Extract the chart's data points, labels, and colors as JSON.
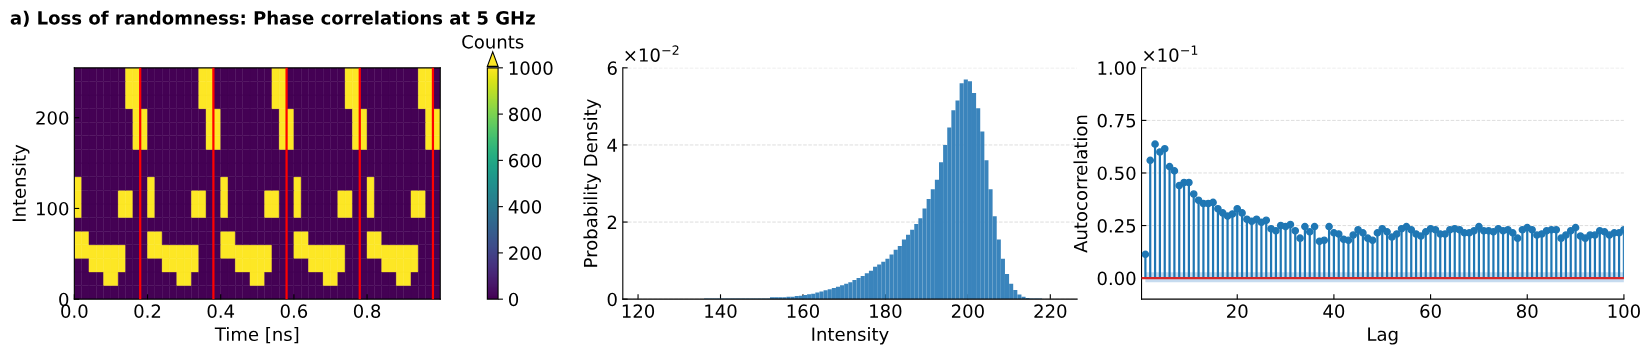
{
  "chart_data": [
    {
      "type": "heatmap",
      "title": "a) Loss of randomness: Phase correlations at 5 GHz",
      "xlabel": "Time [ns]",
      "ylabel": "Intensity",
      "clabel": "Counts",
      "x": [
        0.01,
        0.03,
        0.05,
        0.07,
        0.09,
        0.11,
        0.13,
        0.15,
        0.17,
        0.19,
        0.21,
        0.23,
        0.25,
        0.27,
        0.29,
        0.31,
        0.33,
        0.35,
        0.37,
        0.39,
        0.41,
        0.43,
        0.45,
        0.47,
        0.49,
        0.51,
        0.53,
        0.55,
        0.57,
        0.59,
        0.61,
        0.63,
        0.65,
        0.67,
        0.69,
        0.71,
        0.73,
        0.75,
        0.77,
        0.79,
        0.81,
        0.83,
        0.85,
        0.87,
        0.89,
        0.91,
        0.93,
        0.95,
        0.97,
        0.99
      ],
      "y": [
        7.5,
        22.5,
        37.5,
        52.5,
        67.5,
        82.5,
        97.5,
        112.5,
        127.5,
        142.5,
        157.5,
        172.5,
        187.5,
        202.5,
        217.5,
        232.5,
        247.5
      ],
      "cells": [
        [
          0,
          0,
          0,
          0,
          0,
          0,
          0,
          0,
          0,
          0,
          0,
          0,
          0,
          0,
          0,
          0,
          0,
          0,
          0,
          0,
          0,
          0,
          0,
          0,
          0,
          0,
          0,
          0,
          0,
          0,
          0,
          0,
          0,
          0,
          0,
          0,
          0,
          0,
          0,
          0,
          0,
          0,
          0,
          0,
          0,
          0,
          0,
          0,
          0,
          0
        ],
        [
          0,
          0,
          0,
          0,
          1000,
          1000,
          0,
          0,
          0,
          0,
          0,
          0,
          0,
          0,
          1000,
          1000,
          0,
          0,
          0,
          0,
          0,
          0,
          0,
          0,
          1000,
          1000,
          0,
          0,
          0,
          0,
          0,
          0,
          0,
          0,
          1000,
          1000,
          0,
          0,
          0,
          0,
          0,
          0,
          0,
          0,
          1000,
          1000,
          0,
          0,
          0,
          0
        ],
        [
          0,
          0,
          1000,
          1000,
          1000,
          1000,
          1000,
          0,
          0,
          0,
          0,
          0,
          1000,
          1000,
          1000,
          1000,
          1000,
          0,
          0,
          0,
          0,
          0,
          1000,
          1000,
          1000,
          1000,
          1000,
          0,
          0,
          0,
          0,
          0,
          1000,
          1000,
          1000,
          1000,
          1000,
          0,
          0,
          0,
          0,
          0,
          1000,
          1000,
          1000,
          1000,
          1000,
          0,
          0,
          0
        ],
        [
          1000,
          1000,
          1000,
          1000,
          1000,
          1000,
          1000,
          0,
          0,
          0,
          1000,
          1000,
          1000,
          1000,
          1000,
          1000,
          1000,
          0,
          0,
          0,
          1000,
          1000,
          1000,
          1000,
          1000,
          1000,
          1000,
          0,
          0,
          0,
          1000,
          1000,
          1000,
          1000,
          1000,
          1000,
          1000,
          0,
          0,
          0,
          1000,
          1000,
          1000,
          1000,
          1000,
          1000,
          1000,
          0,
          0,
          0
        ],
        [
          1000,
          1000,
          0,
          0,
          0,
          0,
          0,
          0,
          0,
          0,
          1000,
          1000,
          0,
          0,
          0,
          0,
          0,
          0,
          0,
          0,
          1000,
          1000,
          0,
          0,
          0,
          0,
          0,
          0,
          0,
          0,
          1000,
          1000,
          0,
          0,
          0,
          0,
          0,
          0,
          0,
          0,
          1000,
          1000,
          0,
          0,
          0,
          0,
          0,
          0,
          0,
          0
        ],
        [
          0,
          0,
          0,
          0,
          0,
          0,
          0,
          0,
          0,
          0,
          0,
          0,
          0,
          0,
          0,
          0,
          0,
          0,
          0,
          0,
          0,
          0,
          0,
          0,
          0,
          0,
          0,
          0,
          0,
          0,
          0,
          0,
          0,
          0,
          0,
          0,
          0,
          0,
          0,
          0,
          0,
          0,
          0,
          0,
          0,
          0,
          0,
          0,
          0,
          0
        ],
        [
          1000,
          0,
          0,
          0,
          0,
          0,
          1000,
          1000,
          0,
          0,
          1000,
          0,
          0,
          0,
          0,
          0,
          1000,
          1000,
          0,
          0,
          1000,
          0,
          0,
          0,
          0,
          0,
          1000,
          1000,
          0,
          0,
          1000,
          0,
          0,
          0,
          0,
          0,
          1000,
          1000,
          0,
          0,
          1000,
          0,
          0,
          0,
          0,
          0,
          1000,
          1000,
          0,
          0
        ],
        [
          1000,
          0,
          0,
          0,
          0,
          0,
          1000,
          1000,
          0,
          0,
          1000,
          0,
          0,
          0,
          0,
          0,
          1000,
          1000,
          0,
          0,
          1000,
          0,
          0,
          0,
          0,
          0,
          1000,
          1000,
          0,
          0,
          1000,
          0,
          0,
          0,
          0,
          0,
          1000,
          1000,
          0,
          0,
          1000,
          0,
          0,
          0,
          0,
          0,
          1000,
          1000,
          0,
          0
        ],
        [
          1000,
          0,
          0,
          0,
          0,
          0,
          0,
          0,
          0,
          0,
          1000,
          0,
          0,
          0,
          0,
          0,
          0,
          0,
          0,
          0,
          1000,
          0,
          0,
          0,
          0,
          0,
          0,
          0,
          0,
          0,
          1000,
          0,
          0,
          0,
          0,
          0,
          0,
          0,
          0,
          0,
          1000,
          0,
          0,
          0,
          0,
          0,
          0,
          0,
          0,
          0
        ],
        [
          0,
          0,
          0,
          0,
          0,
          0,
          0,
          0,
          0,
          0,
          0,
          0,
          0,
          0,
          0,
          0,
          0,
          0,
          0,
          0,
          0,
          0,
          0,
          0,
          0,
          0,
          0,
          0,
          0,
          0,
          0,
          0,
          0,
          0,
          0,
          0,
          0,
          0,
          0,
          0,
          0,
          0,
          0,
          0,
          0,
          0,
          0,
          0,
          0,
          0
        ],
        [
          0,
          0,
          0,
          0,
          0,
          0,
          0,
          0,
          0,
          0,
          0,
          0,
          0,
          0,
          0,
          0,
          0,
          0,
          0,
          0,
          0,
          0,
          0,
          0,
          0,
          0,
          0,
          0,
          0,
          0,
          0,
          0,
          0,
          0,
          0,
          0,
          0,
          0,
          0,
          0,
          0,
          0,
          0,
          0,
          0,
          0,
          0,
          0,
          0,
          0
        ],
        [
          0,
          0,
          0,
          0,
          0,
          0,
          0,
          0,
          1000,
          1000,
          0,
          0,
          0,
          0,
          0,
          0,
          0,
          0,
          1000,
          1000,
          0,
          0,
          0,
          0,
          0,
          0,
          0,
          0,
          1000,
          1000,
          0,
          0,
          0,
          0,
          0,
          0,
          0,
          0,
          1000,
          1000,
          0,
          0,
          0,
          0,
          0,
          0,
          0,
          0,
          1000,
          1000
        ],
        [
          0,
          0,
          0,
          0,
          0,
          0,
          0,
          0,
          1000,
          1000,
          0,
          0,
          0,
          0,
          0,
          0,
          0,
          0,
          1000,
          1000,
          0,
          0,
          0,
          0,
          0,
          0,
          0,
          0,
          1000,
          1000,
          0,
          0,
          0,
          0,
          0,
          0,
          0,
          0,
          1000,
          1000,
          0,
          0,
          0,
          0,
          0,
          0,
          0,
          0,
          1000,
          1000
        ],
        [
          0,
          0,
          0,
          0,
          0,
          0,
          0,
          0,
          1000,
          1000,
          0,
          0,
          0,
          0,
          0,
          0,
          0,
          0,
          1000,
          1000,
          0,
          0,
          0,
          0,
          0,
          0,
          0,
          0,
          1000,
          1000,
          0,
          0,
          0,
          0,
          0,
          0,
          0,
          0,
          1000,
          1000,
          0,
          0,
          0,
          0,
          0,
          0,
          0,
          0,
          1000,
          1000
        ],
        [
          0,
          0,
          0,
          0,
          0,
          0,
          0,
          1000,
          1000,
          0,
          0,
          0,
          0,
          0,
          0,
          0,
          0,
          1000,
          1000,
          0,
          0,
          0,
          0,
          0,
          0,
          0,
          0,
          1000,
          1000,
          0,
          0,
          0,
          0,
          0,
          0,
          0,
          0,
          1000,
          1000,
          0,
          0,
          0,
          0,
          0,
          0,
          0,
          0,
          1000,
          1000,
          0
        ],
        [
          0,
          0,
          0,
          0,
          0,
          0,
          0,
          1000,
          1000,
          0,
          0,
          0,
          0,
          0,
          0,
          0,
          0,
          1000,
          1000,
          0,
          0,
          0,
          0,
          0,
          0,
          0,
          0,
          1000,
          1000,
          0,
          0,
          0,
          0,
          0,
          0,
          0,
          0,
          1000,
          1000,
          0,
          0,
          0,
          0,
          0,
          0,
          0,
          0,
          1000,
          1000,
          0
        ],
        [
          0,
          0,
          0,
          0,
          0,
          0,
          0,
          1000,
          1000,
          0,
          0,
          0,
          0,
          0,
          0,
          0,
          0,
          1000,
          1000,
          0,
          0,
          0,
          0,
          0,
          0,
          0,
          0,
          1000,
          1000,
          0,
          0,
          0,
          0,
          0,
          0,
          0,
          0,
          1000,
          1000,
          0,
          0,
          0,
          0,
          0,
          0,
          0,
          0,
          1000,
          1000,
          0
        ]
      ],
      "xlim": [
        0,
        1
      ],
      "ylim": [
        0,
        255
      ],
      "xticks": [
        {
          "value": 0,
          "label": "0.0"
        },
        {
          "value": 0.2,
          "label": "0.2"
        },
        {
          "value": 0.4,
          "label": "0.4"
        },
        {
          "value": 0.6,
          "label": "0.6"
        },
        {
          "value": 0.8,
          "label": "0.8"
        }
      ],
      "yticks": [
        0,
        100,
        200
      ],
      "clim": [
        0,
        1000
      ],
      "cticks": [
        0,
        200,
        400,
        600,
        800,
        1000
      ],
      "ref_lines": [
        {
          "axis": "x",
          "value": 0.18,
          "color": "#ff0000"
        },
        {
          "axis": "x",
          "value": 0.38,
          "color": "#ff0000"
        },
        {
          "axis": "x",
          "value": 0.58,
          "color": "#ff0000"
        },
        {
          "axis": "x",
          "value": 0.78,
          "color": "#ff0000"
        },
        {
          "axis": "x",
          "value": 0.98,
          "color": "#ff0000"
        }
      ]
    },
    {
      "type": "histogram",
      "xlabel": "Intensity",
      "ylabel": "Probability Density",
      "color": "#3a84bc",
      "bins": [
        136,
        137,
        138,
        139,
        140,
        141,
        142,
        143,
        144,
        145,
        146,
        147,
        148,
        149,
        150,
        151,
        152,
        153,
        154,
        155,
        156,
        157,
        158,
        159,
        160,
        161,
        162,
        163,
        164,
        165,
        166,
        167,
        168,
        169,
        170,
        171,
        172,
        173,
        174,
        175,
        176,
        177,
        178,
        179,
        180,
        181,
        182,
        183,
        184,
        185,
        186,
        187,
        188,
        189,
        190,
        191,
        192,
        193,
        194,
        195,
        196,
        197,
        198,
        199,
        200,
        201,
        202,
        203,
        204,
        205,
        206,
        207,
        208,
        209,
        210,
        211,
        212,
        213,
        214,
        215,
        216,
        217,
        218
      ],
      "values": [
        0.02,
        0.02,
        0.02,
        0.02,
        0.02,
        0.02,
        0.02,
        0.02,
        0.02,
        0.02,
        0.02,
        0.02,
        0.02,
        0.02,
        0.02,
        0.02,
        0.05,
        0.05,
        0.05,
        0.05,
        0.06,
        0.06,
        0.08,
        0.09,
        0.11,
        0.13,
        0.14,
        0.17,
        0.2,
        0.23,
        0.26,
        0.29,
        0.32,
        0.36,
        0.4,
        0.44,
        0.5,
        0.55,
        0.6,
        0.67,
        0.74,
        0.84,
        0.9,
        0.97,
        1.05,
        1.16,
        1.28,
        1.38,
        1.55,
        1.67,
        1.8,
        1.95,
        2.1,
        2.35,
        2.6,
        2.85,
        3.1,
        3.55,
        4.0,
        4.45,
        4.9,
        5.15,
        5.6,
        5.7,
        5.65,
        5.35,
        4.95,
        4.35,
        3.6,
        2.85,
        2.15,
        1.55,
        1.05,
        0.65,
        0.4,
        0.24,
        0.12,
        0.06,
        0.03,
        0.02,
        0.02,
        0.02
      ],
      "xlim": [
        116.3,
        226.5
      ],
      "ylim": [
        0,
        6
      ],
      "xticks": [
        120,
        140,
        160,
        180,
        200,
        220
      ],
      "yticks": [
        0,
        2,
        4,
        6
      ],
      "grid": "y",
      "annotations": [
        "×10$^{−2}$"
      ]
    },
    {
      "type": "lollipop",
      "xlabel": "Lag",
      "ylabel": "Autocorrelation",
      "marker": "circle",
      "x": [
        1,
        2,
        3,
        4,
        5,
        6,
        7,
        8,
        9,
        10,
        11,
        12,
        13,
        14,
        15,
        16,
        17,
        18,
        19,
        20,
        21,
        22,
        23,
        24,
        25,
        26,
        27,
        28,
        29,
        30,
        31,
        32,
        33,
        34,
        35,
        36,
        37,
        38,
        39,
        40,
        41,
        42,
        43,
        44,
        45,
        46,
        47,
        48,
        49,
        50,
        51,
        52,
        53,
        54,
        55,
        56,
        57,
        58,
        59,
        60,
        61,
        62,
        63,
        64,
        65,
        66,
        67,
        68,
        69,
        70,
        71,
        72,
        73,
        74,
        75,
        76,
        77,
        78,
        79,
        80,
        81,
        82,
        83,
        84,
        85,
        86,
        87,
        88,
        89,
        90,
        91,
        92,
        93,
        94,
        95,
        96,
        97,
        98,
        99,
        100
      ],
      "series": [
        {
          "color": "#1f77b4",
          "values": [
            0.113,
            0.56,
            0.637,
            0.6,
            0.615,
            0.53,
            0.51,
            0.44,
            0.455,
            0.455,
            0.4,
            0.37,
            0.355,
            0.355,
            0.36,
            0.33,
            0.31,
            0.295,
            0.305,
            0.33,
            0.31,
            0.28,
            0.27,
            0.28,
            0.265,
            0.275,
            0.235,
            0.225,
            0.25,
            0.245,
            0.255,
            0.225,
            0.19,
            0.245,
            0.22,
            0.245,
            0.175,
            0.18,
            0.245,
            0.215,
            0.21,
            0.185,
            0.18,
            0.205,
            0.23,
            0.215,
            0.19,
            0.18,
            0.215,
            0.235,
            0.22,
            0.195,
            0.21,
            0.235,
            0.245,
            0.23,
            0.21,
            0.2,
            0.22,
            0.235,
            0.23,
            0.21,
            0.21,
            0.23,
            0.235,
            0.23,
            0.215,
            0.215,
            0.225,
            0.245,
            0.225,
            0.225,
            0.22,
            0.235,
            0.225,
            0.23,
            0.215,
            0.19,
            0.23,
            0.24,
            0.23,
            0.205,
            0.21,
            0.225,
            0.23,
            0.23,
            0.19,
            0.205,
            0.225,
            0.24,
            0.2,
            0.19,
            0.205,
            0.205,
            0.225,
            0.22,
            0.205,
            0.215,
            0.215,
            0.23
          ]
        }
      ],
      "xlim": [
        0.2,
        100
      ],
      "ylim": [
        -0.1,
        1.0
      ],
      "xticks": [
        20,
        40,
        60,
        80,
        100
      ],
      "yticks": [
        {
          "value": 0,
          "label": "0.00"
        },
        {
          "value": 0.25,
          "label": "0.25"
        },
        {
          "value": 0.5,
          "label": "0.50"
        },
        {
          "value": 0.75,
          "label": "0.75"
        },
        {
          "value": 1.0,
          "label": "1.00"
        }
      ],
      "ref_lines": [
        {
          "axis": "y",
          "value": 0,
          "color": "#d62728"
        }
      ],
      "bands": [
        {
          "axis": "y",
          "from": -0.02,
          "to": 0.028,
          "color": "#c6dbef"
        }
      ],
      "grid": "y",
      "annotations": [
        "×10$^{−1}$"
      ]
    }
  ]
}
